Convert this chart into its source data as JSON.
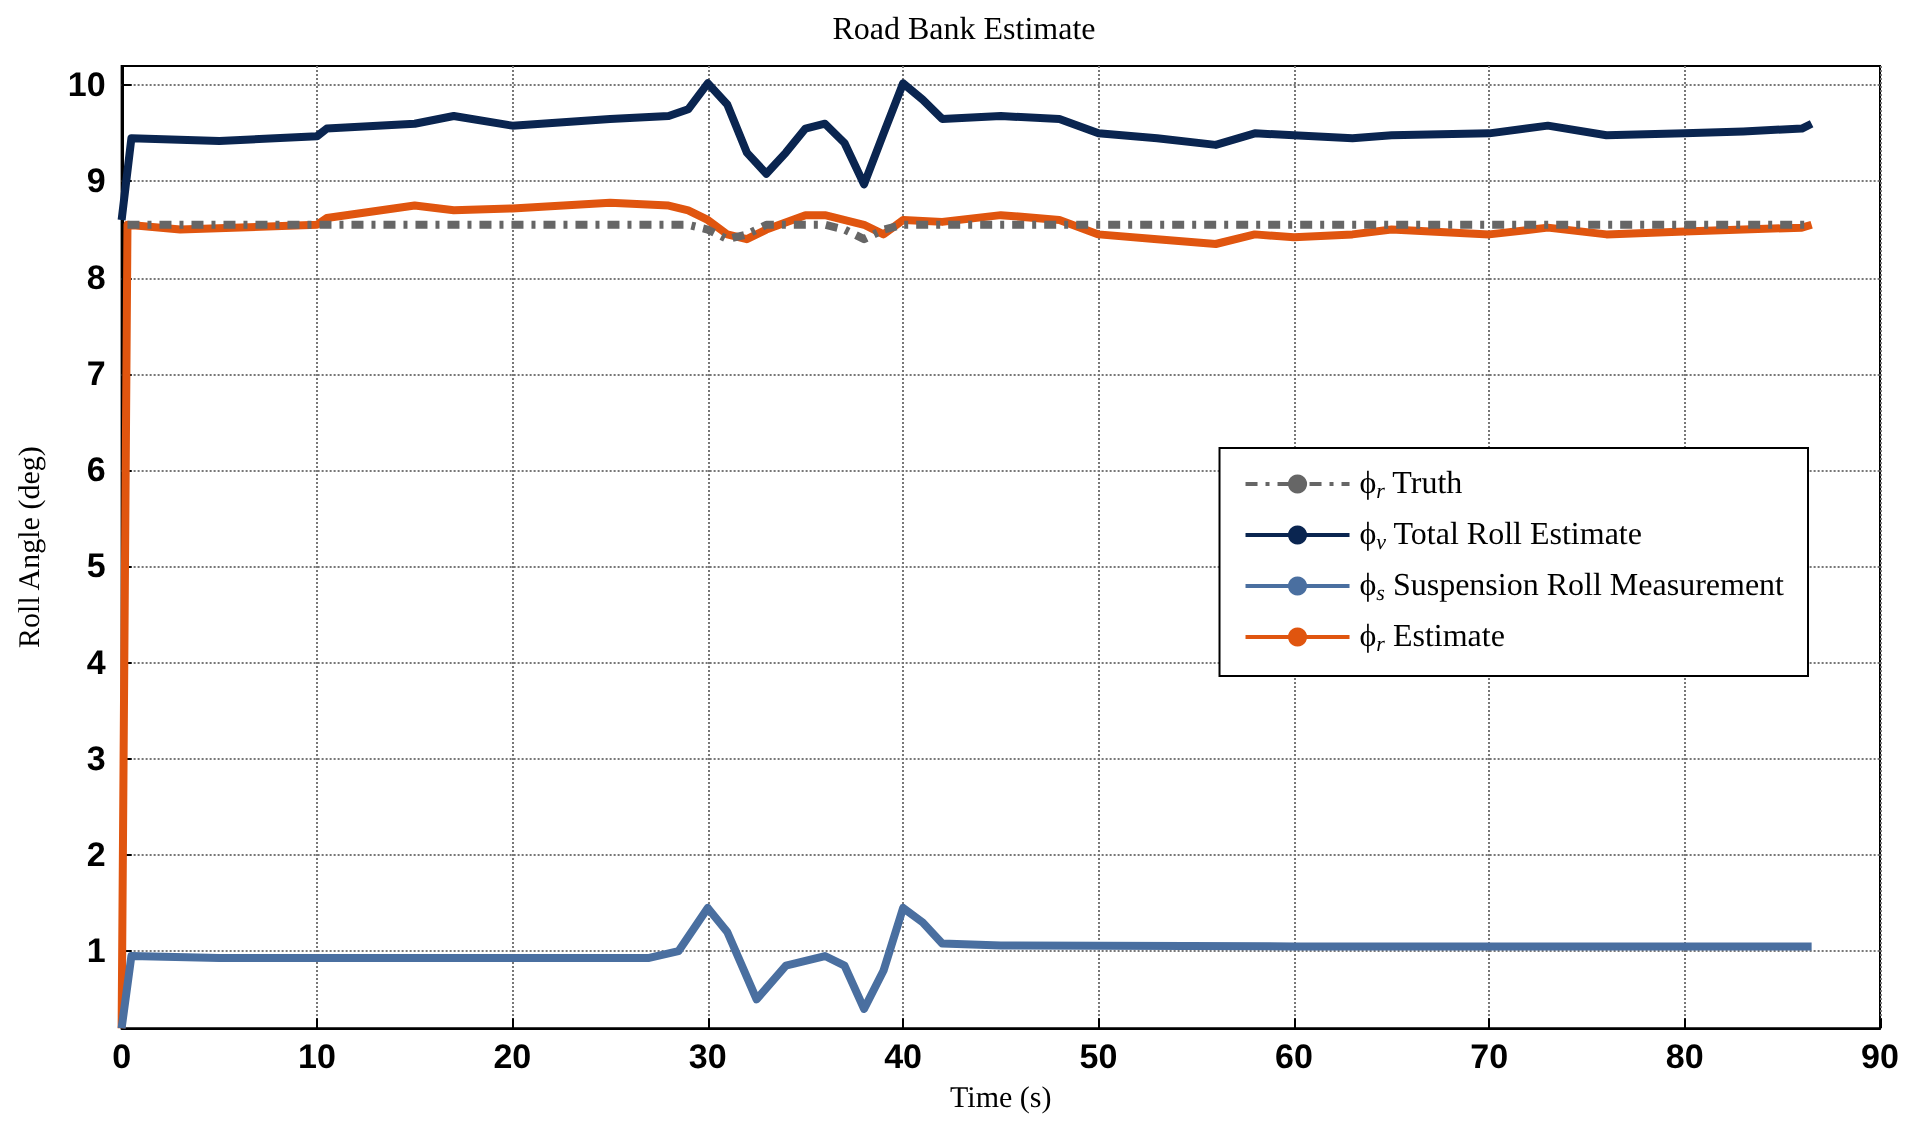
{
  "chart_data": {
    "type": "line",
    "title": "Road Bank Estimate",
    "xlabel": "Time (s)",
    "ylabel": "Roll Angle (deg)",
    "xlim": [
      0,
      90
    ],
    "xticks": [
      0,
      10,
      20,
      30,
      40,
      50,
      60,
      70,
      80,
      90
    ],
    "ylim": [
      0.2,
      10.2
    ],
    "yticks": [
      1,
      2,
      3,
      4,
      5,
      6,
      7,
      8,
      9,
      10
    ],
    "grid": true,
    "legend": "right",
    "marker": "none",
    "series": [
      {
        "name": "ϕ$_{r}$ Truth",
        "color": "#666666",
        "line_style": "dashed",
        "x": [
          0.3,
          10,
          20,
          29,
          30,
          31,
          32,
          33,
          36,
          37,
          38,
          39,
          40,
          50,
          60,
          70,
          80,
          86.5
        ],
        "values": [
          8.55,
          8.55,
          8.55,
          8.55,
          8.5,
          8.4,
          8.45,
          8.55,
          8.55,
          8.5,
          8.4,
          8.5,
          8.55,
          8.55,
          8.55,
          8.55,
          8.55,
          8.55
        ]
      },
      {
        "name": "ϕ$_{v}$ Total Roll Estimate",
        "color": "#0a2550",
        "x": [
          0,
          0.5,
          5,
          10,
          10.5,
          15,
          17,
          20,
          25,
          28,
          29,
          30,
          31,
          32,
          33,
          34,
          35,
          36,
          37,
          38,
          39,
          40,
          41,
          42,
          45,
          48,
          50,
          53,
          56,
          58,
          60,
          63,
          65,
          70,
          73,
          76,
          80,
          83,
          86,
          86.5
        ],
        "values": [
          8.6,
          9.45,
          9.42,
          9.47,
          9.55,
          9.6,
          9.68,
          9.58,
          9.65,
          9.68,
          9.75,
          10.02,
          9.8,
          9.3,
          9.08,
          9.3,
          9.55,
          9.6,
          9.4,
          8.97,
          9.5,
          10.02,
          9.85,
          9.65,
          9.68,
          9.65,
          9.5,
          9.45,
          9.38,
          9.5,
          9.48,
          9.45,
          9.48,
          9.5,
          9.58,
          9.48,
          9.5,
          9.52,
          9.55,
          9.6
        ]
      },
      {
        "name": "ϕ$_{s}$ Suspension Roll Measurement",
        "color": "#4a6fa0",
        "x": [
          0,
          0.5,
          5,
          10,
          20,
          27,
          28.5,
          30,
          31,
          32.5,
          34,
          36,
          37,
          38,
          39,
          40,
          41,
          42,
          45,
          60,
          86.5
        ],
        "values": [
          0.2,
          0.95,
          0.93,
          0.93,
          0.93,
          0.93,
          1.0,
          1.45,
          1.2,
          0.5,
          0.85,
          0.95,
          0.85,
          0.4,
          0.8,
          1.45,
          1.3,
          1.08,
          1.06,
          1.05,
          1.05
        ]
      },
      {
        "name": "ϕ$_{r}$ Estimate",
        "color": "#e0550f",
        "x": [
          0,
          0.3,
          3,
          10,
          10.5,
          15,
          17,
          20,
          25,
          28,
          29,
          30,
          31,
          32,
          33,
          35,
          36,
          38,
          39,
          40,
          42,
          45,
          48,
          50,
          53,
          56,
          58,
          60,
          63,
          65,
          70,
          73,
          76,
          80,
          83,
          86,
          86.5
        ],
        "values": [
          0.2,
          8.55,
          8.5,
          8.55,
          8.62,
          8.75,
          8.7,
          8.72,
          8.78,
          8.75,
          8.7,
          8.6,
          8.45,
          8.4,
          8.5,
          8.65,
          8.65,
          8.55,
          8.45,
          8.6,
          8.58,
          8.65,
          8.6,
          8.45,
          8.4,
          8.35,
          8.45,
          8.42,
          8.45,
          8.5,
          8.45,
          8.52,
          8.45,
          8.48,
          8.5,
          8.52,
          8.55
        ]
      }
    ]
  }
}
